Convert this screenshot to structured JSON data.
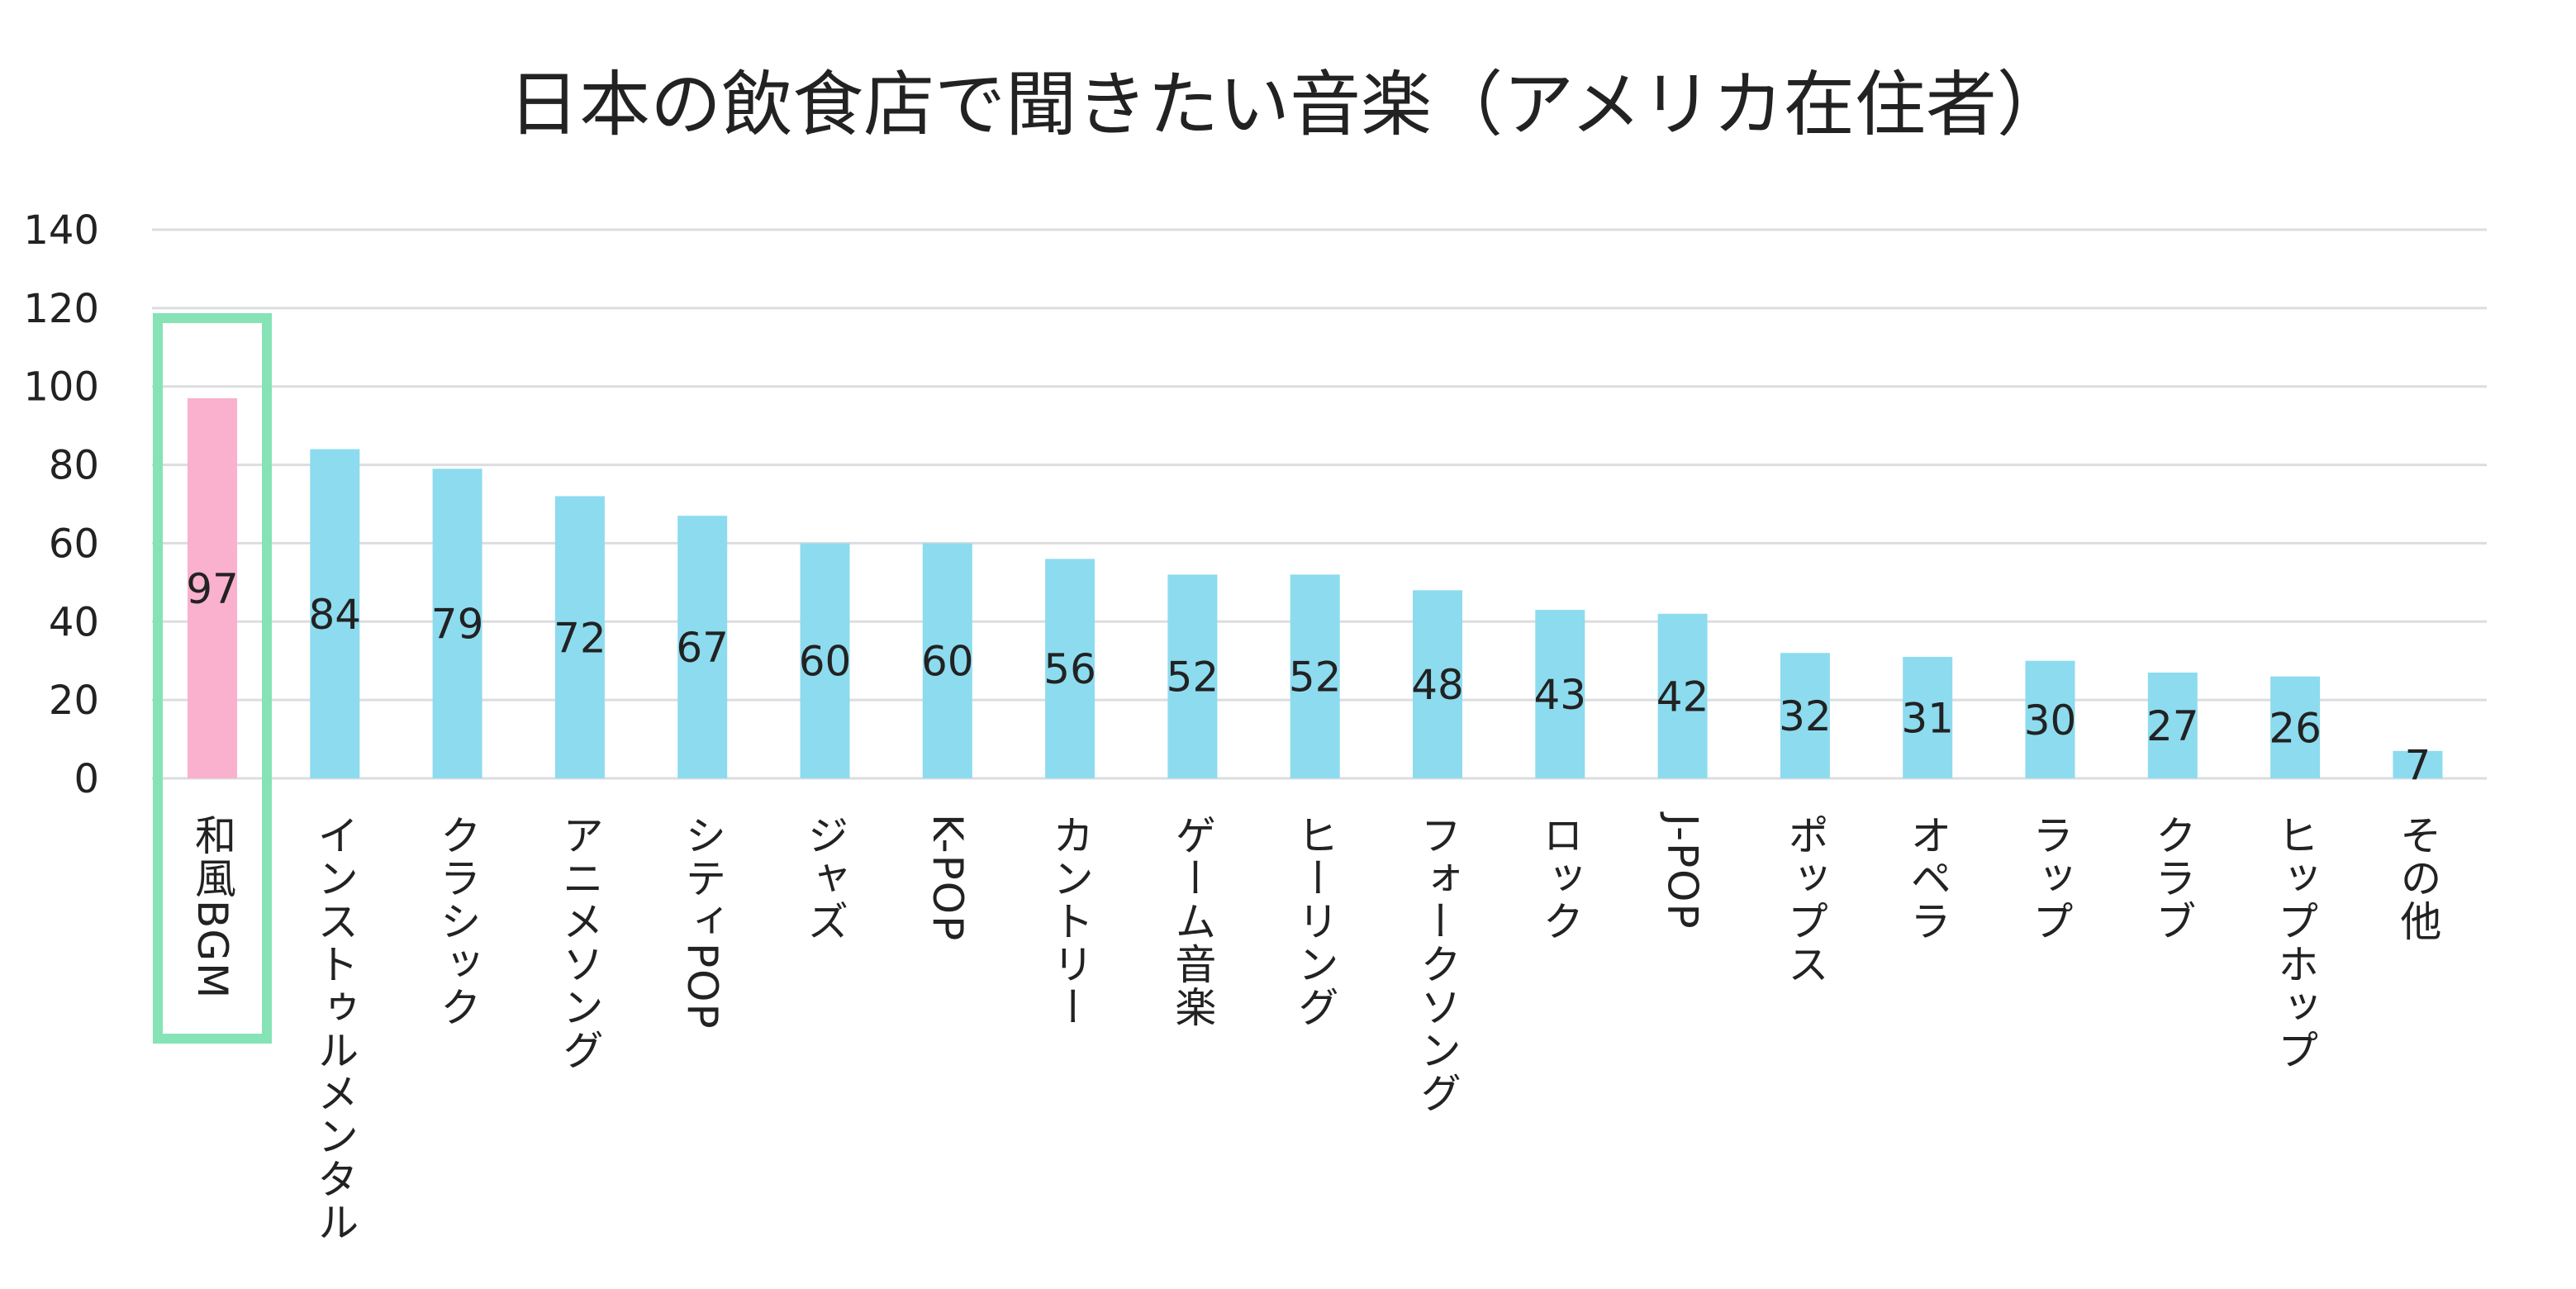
{
  "chart_data": {
    "type": "bar",
    "title": "日本の飲食店で聞きたい音楽（アメリカ在住者）",
    "xlabel": "",
    "ylabel": "",
    "ylim": [
      0,
      140
    ],
    "yticks": [
      0,
      20,
      40,
      60,
      80,
      100,
      120,
      140
    ],
    "grid": true,
    "categories": [
      "和風BGM",
      "インストゥルメンタル",
      "クラシック",
      "アニメソング",
      "シティPOP",
      "ジャズ",
      "K-POP",
      "カントリー",
      "ゲーム音楽",
      "ヒーリング",
      "フォークソング",
      "ロック",
      "J-POP",
      "ポップス",
      "オペラ",
      "ラップ",
      "クラブ",
      "ヒップホップ",
      "その他"
    ],
    "values": [
      97,
      84,
      79,
      72,
      67,
      60,
      60,
      56,
      52,
      52,
      48,
      43,
      42,
      32,
      31,
      30,
      27,
      26,
      7
    ],
    "highlight_index": 0,
    "colors": {
      "highlight_bar": "#f9b1cd",
      "bar": "#8ddbef",
      "highlight_box": "#86e3b6",
      "grid": "#dcdde0"
    }
  }
}
